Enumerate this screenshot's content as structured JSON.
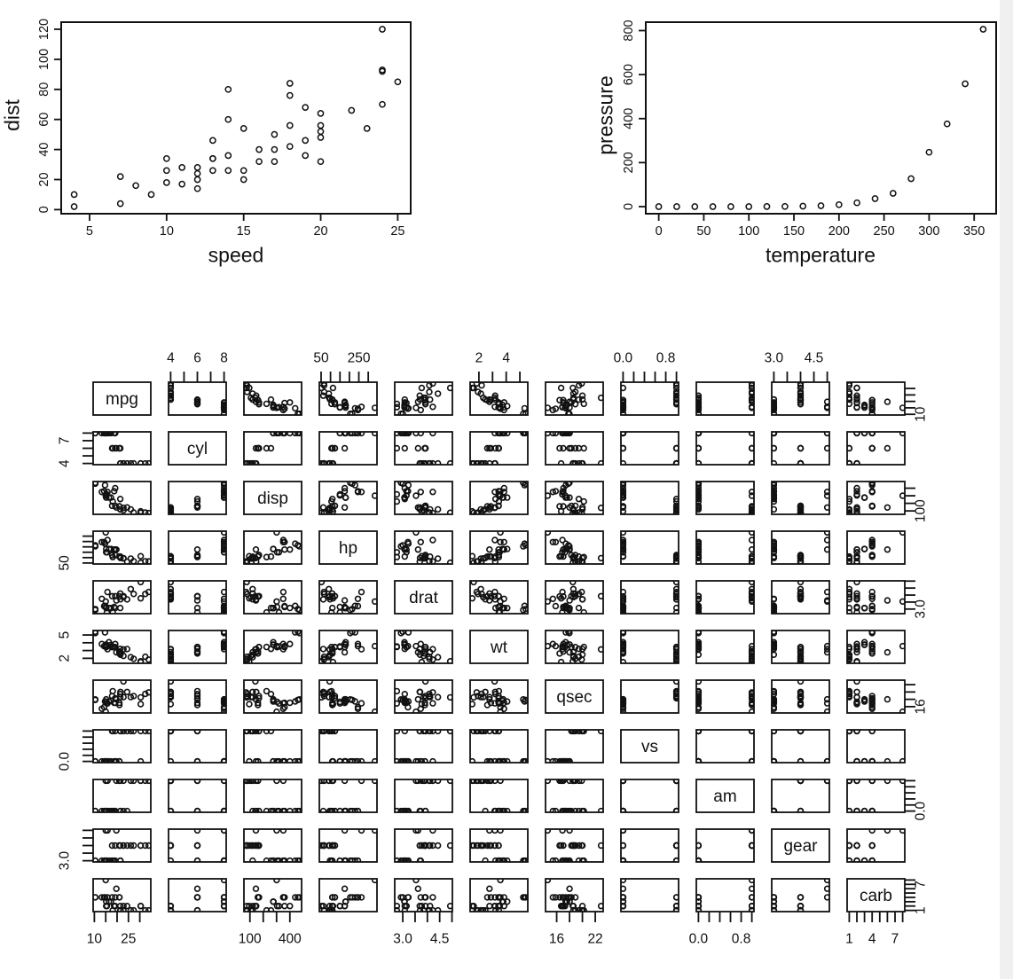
{
  "colors": {
    "stroke": "#111111",
    "background": "#ffffff",
    "edge_strip": "#f0f0f0"
  },
  "chart_data": [
    {
      "type": "scatter",
      "id": "cars",
      "title": "",
      "xlabel": "speed",
      "ylabel": "dist",
      "x": [
        4,
        4,
        7,
        7,
        8,
        9,
        10,
        10,
        10,
        11,
        11,
        12,
        12,
        12,
        12,
        13,
        13,
        13,
        13,
        14,
        14,
        14,
        14,
        15,
        15,
        15,
        16,
        16,
        17,
        17,
        17,
        18,
        18,
        18,
        18,
        19,
        19,
        19,
        20,
        20,
        20,
        20,
        20,
        22,
        23,
        24,
        24,
        24,
        24,
        25
      ],
      "y": [
        2,
        10,
        4,
        22,
        16,
        10,
        18,
        26,
        34,
        17,
        28,
        14,
        20,
        24,
        28,
        26,
        34,
        34,
        46,
        26,
        36,
        60,
        80,
        20,
        26,
        54,
        32,
        40,
        32,
        40,
        50,
        42,
        56,
        76,
        84,
        36,
        46,
        68,
        32,
        48,
        52,
        56,
        64,
        66,
        54,
        70,
        92,
        93,
        120,
        85
      ],
      "xticks": [
        5,
        10,
        15,
        20,
        25
      ],
      "xtick_labels": [
        "5",
        "10",
        "15",
        "20",
        "25"
      ],
      "yticks": [
        0,
        20,
        40,
        60,
        80,
        100,
        120
      ],
      "ytick_labels": [
        "0",
        "20",
        "40",
        "60",
        "80",
        "100",
        "120"
      ],
      "xlim": [
        3.16,
        25.84
      ],
      "ylim": [
        -2.72,
        124.72
      ],
      "grid": false,
      "legend": null
    },
    {
      "type": "scatter",
      "id": "pressure",
      "title": "",
      "xlabel": "temperature",
      "ylabel": "pressure",
      "x": [
        0,
        20,
        40,
        60,
        80,
        100,
        120,
        140,
        160,
        180,
        200,
        220,
        240,
        260,
        280,
        300,
        320,
        340,
        360
      ],
      "y": [
        0.0001,
        0.0002,
        0.0012,
        0.006,
        0.03,
        0.09,
        0.27,
        0.75,
        1.85,
        4.2,
        8.8,
        17.3,
        36.1,
        60.6,
        127,
        247,
        376,
        558,
        806
      ],
      "xticks": [
        0,
        50,
        100,
        150,
        200,
        250,
        300,
        350
      ],
      "xtick_labels": [
        "0",
        "50",
        "100",
        "150",
        "200",
        "250",
        "300",
        "350"
      ],
      "yticks": [
        0,
        200,
        400,
        600,
        800
      ],
      "ytick_labels": [
        "0",
        "200",
        "400",
        "600",
        "800"
      ],
      "xlim": [
        -14.4,
        374.4
      ],
      "ylim": [
        -32.2,
        838.2
      ],
      "grid": false,
      "legend": null
    },
    {
      "type": "scatter",
      "id": "mtcars_pairs",
      "kind": "pairs_matrix",
      "title": "",
      "variables": [
        {
          "name": "mpg",
          "ticks": [
            10,
            15,
            20,
            25,
            30
          ],
          "edge": "bottom",
          "edge_labels": [
            [
              10,
              "10"
            ],
            [
              25,
              "25"
            ]
          ],
          "side": "right",
          "side_labels": [
            [
              10,
              "10"
            ]
          ]
        },
        {
          "name": "cyl",
          "ticks": [
            4,
            5,
            6,
            7,
            8
          ],
          "edge": "top",
          "edge_labels": [
            [
              4,
              "4"
            ],
            [
              6,
              "6"
            ],
            [
              8,
              "8"
            ]
          ],
          "side": "left",
          "side_labels": [
            [
              4,
              "4"
            ],
            [
              7,
              "7"
            ]
          ]
        },
        {
          "name": "disp",
          "ticks": [
            100,
            200,
            300,
            400
          ],
          "edge": "bottom",
          "edge_labels": [
            [
              100,
              "100"
            ],
            [
              400,
              "400"
            ]
          ],
          "side": "right",
          "side_labels": [
            [
              100,
              "100"
            ]
          ]
        },
        {
          "name": "hp",
          "ticks": [
            50,
            100,
            150,
            200,
            250,
            300
          ],
          "edge": "top",
          "edge_labels": [
            [
              50,
              "50"
            ],
            [
              250,
              "250"
            ]
          ],
          "side": "left",
          "side_labels": [
            [
              50,
              "50"
            ]
          ]
        },
        {
          "name": "drat",
          "ticks": [
            3,
            3.5,
            4,
            4.5,
            5
          ],
          "edge": "bottom",
          "edge_labels": [
            [
              3,
              "3.0"
            ],
            [
              4.5,
              "4.5"
            ]
          ],
          "side": "right",
          "side_labels": [
            [
              3,
              "3.0"
            ]
          ]
        },
        {
          "name": "wt",
          "ticks": [
            2,
            3,
            4,
            5
          ],
          "edge": "top",
          "edge_labels": [
            [
              2,
              "2"
            ],
            [
              4,
              "4"
            ]
          ],
          "side": "left",
          "side_labels": [
            [
              2,
              "2"
            ],
            [
              5,
              "5"
            ]
          ]
        },
        {
          "name": "qsec",
          "ticks": [
            16,
            18,
            20,
            22
          ],
          "edge": "bottom",
          "edge_labels": [
            [
              16,
              "16"
            ],
            [
              22,
              "22"
            ]
          ],
          "side": "right",
          "side_labels": [
            [
              16,
              "16"
            ]
          ]
        },
        {
          "name": "vs",
          "ticks": [
            0,
            0.2,
            0.4,
            0.6,
            0.8,
            1
          ],
          "edge": "top",
          "edge_labels": [
            [
              0,
              "0.0"
            ],
            [
              0.8,
              "0.8"
            ]
          ],
          "side": "left",
          "side_labels": [
            [
              0,
              "0.0"
            ]
          ]
        },
        {
          "name": "am",
          "ticks": [
            0,
            0.2,
            0.4,
            0.6,
            0.8,
            1
          ],
          "edge": "bottom",
          "edge_labels": [
            [
              0,
              "0.0"
            ],
            [
              0.8,
              "0.8"
            ]
          ],
          "side": "right",
          "side_labels": [
            [
              0,
              "0.0"
            ]
          ]
        },
        {
          "name": "gear",
          "ticks": [
            3,
            3.5,
            4,
            4.5,
            5
          ],
          "edge": "top",
          "edge_labels": [
            [
              3,
              "3.0"
            ],
            [
              4.5,
              "4.5"
            ]
          ],
          "side": "left",
          "side_labels": [
            [
              3,
              "3.0"
            ]
          ]
        },
        {
          "name": "carb",
          "ticks": [
            1,
            2,
            3,
            4,
            5,
            6,
            7,
            8
          ],
          "edge": "bottom",
          "edge_labels": [
            [
              1,
              "1"
            ],
            [
              4,
              "4"
            ],
            [
              7,
              "7"
            ]
          ],
          "side": "right",
          "side_labels": [
            [
              1,
              "1"
            ],
            [
              7,
              "7"
            ]
          ]
        }
      ],
      "series": {
        "mpg": [
          21,
          21,
          22.8,
          21.4,
          18.7,
          18.1,
          14.3,
          24.4,
          22.8,
          19.2,
          17.8,
          16.4,
          17.3,
          15.2,
          10.4,
          10.4,
          14.7,
          32.4,
          30.4,
          33.9,
          21.5,
          15.5,
          15.2,
          13.3,
          19.2,
          27.3,
          26,
          30.4,
          15.8,
          19.7,
          15,
          21.4
        ],
        "cyl": [
          6,
          6,
          4,
          6,
          8,
          6,
          8,
          4,
          4,
          6,
          6,
          8,
          8,
          8,
          8,
          8,
          8,
          4,
          4,
          4,
          4,
          8,
          8,
          8,
          8,
          4,
          4,
          4,
          8,
          6,
          8,
          4
        ],
        "disp": [
          160,
          160,
          108,
          258,
          360,
          225,
          360,
          146.7,
          140.8,
          167.6,
          167.6,
          275.8,
          275.8,
          275.8,
          472,
          460,
          440,
          78.7,
          75.7,
          71.1,
          120.1,
          318,
          304,
          350,
          400,
          79,
          120.3,
          95.1,
          351,
          145,
          301,
          121
        ],
        "hp": [
          110,
          110,
          93,
          110,
          175,
          105,
          245,
          62,
          95,
          123,
          123,
          180,
          180,
          180,
          205,
          215,
          230,
          66,
          52,
          65,
          97,
          150,
          150,
          245,
          175,
          66,
          91,
          113,
          264,
          175,
          335,
          109
        ],
        "drat": [
          3.9,
          3.9,
          3.85,
          3.08,
          3.15,
          2.76,
          3.21,
          3.69,
          3.92,
          3.92,
          3.92,
          3.07,
          3.07,
          3.07,
          2.93,
          3,
          3.23,
          4.08,
          4.93,
          4.22,
          3.7,
          2.76,
          3.15,
          3.73,
          3.08,
          4.08,
          4.43,
          3.77,
          4.22,
          3.62,
          3.54,
          4.11
        ],
        "wt": [
          2.62,
          2.875,
          2.32,
          3.215,
          3.44,
          3.46,
          3.57,
          3.19,
          3.15,
          3.44,
          3.44,
          4.07,
          3.73,
          3.78,
          5.25,
          5.424,
          5.345,
          2.2,
          1.615,
          1.835,
          2.465,
          3.52,
          3.435,
          3.84,
          3.845,
          1.935,
          2.14,
          1.513,
          3.17,
          2.77,
          3.57,
          2.78
        ],
        "qsec": [
          16.46,
          17.02,
          18.61,
          19.44,
          17.02,
          20.22,
          15.84,
          20,
          22.9,
          18.3,
          18.9,
          17.4,
          17.6,
          18,
          17.98,
          17.82,
          17.42,
          19.47,
          18.52,
          19.9,
          20.01,
          16.87,
          17.3,
          15.41,
          17.05,
          18.9,
          18.6,
          16.7,
          16.9,
          18,
          14.6,
          18.6
        ],
        "vs": [
          0,
          0,
          1,
          1,
          0,
          1,
          0,
          1,
          1,
          1,
          1,
          0,
          0,
          0,
          0,
          0,
          0,
          1,
          1,
          1,
          1,
          0,
          0,
          0,
          0,
          1,
          1,
          0,
          0,
          0,
          0,
          1
        ],
        "am": [
          1,
          1,
          1,
          0,
          0,
          0,
          0,
          0,
          0,
          0,
          0,
          0,
          0,
          0,
          0,
          0,
          0,
          1,
          1,
          1,
          0,
          0,
          0,
          0,
          0,
          1,
          1,
          1,
          1,
          1,
          1,
          1
        ],
        "gear": [
          4,
          4,
          4,
          3,
          3,
          3,
          3,
          4,
          4,
          4,
          4,
          3,
          3,
          3,
          3,
          3,
          3,
          4,
          4,
          4,
          3,
          3,
          3,
          3,
          3,
          4,
          4,
          4,
          5,
          5,
          5,
          4
        ],
        "carb": [
          4,
          4,
          1,
          1,
          2,
          1,
          4,
          2,
          2,
          4,
          4,
          3,
          3,
          3,
          4,
          4,
          4,
          1,
          2,
          1,
          1,
          2,
          2,
          4,
          2,
          1,
          1,
          2,
          4,
          6,
          8,
          2
        ]
      },
      "grid": false,
      "legend": null
    }
  ]
}
